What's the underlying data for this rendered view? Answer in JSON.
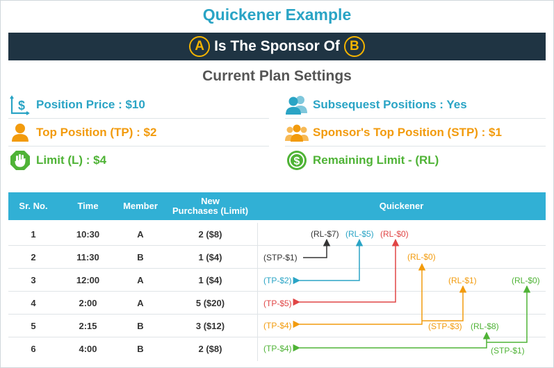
{
  "title": "Quickener Example",
  "banner": {
    "left_circle": "A",
    "text": "Is The Sponsor Of",
    "right_circle": "B"
  },
  "subtitle": "Current Plan Settings",
  "settings": {
    "left": [
      {
        "icon": "price-chart-icon",
        "label": "Position Price : $10",
        "color": "#2aa4c5"
      },
      {
        "icon": "user-icon",
        "label": "Top Position (TP) : $2",
        "color": "#f29b0d"
      },
      {
        "icon": "stop-hand-icon",
        "label": "Limit (L) : $4",
        "color": "#4fb336"
      }
    ],
    "right": [
      {
        "icon": "users-icon",
        "label": "Subsequest Positions : Yes",
        "color": "#2aa4c5"
      },
      {
        "icon": "group-icon",
        "label": "Sponsor's Top Position (STP) : $1",
        "color": "#f29b0d"
      },
      {
        "icon": "dollar-circle-icon",
        "label": "Remaining Limit - (RL)",
        "color": "#4fb336"
      }
    ]
  },
  "table": {
    "headers": {
      "sr": "Sr. No.",
      "time": "Time",
      "member": "Member",
      "purchases_1": "New",
      "purchases_2": "Purchases (Limit)",
      "quickener": "Quickener"
    },
    "rows": [
      {
        "sr": "1",
        "time": "10:30",
        "member": "A",
        "purchases": "2 ($8)"
      },
      {
        "sr": "2",
        "time": "11:30",
        "member": "B",
        "purchases": "1 ($4)"
      },
      {
        "sr": "3",
        "time": "12:00",
        "member": "A",
        "purchases": "1 ($4)"
      },
      {
        "sr": "4",
        "time": "2:00",
        "member": "A",
        "purchases": "5 ($20)"
      },
      {
        "sr": "5",
        "time": "2:15",
        "member": "B",
        "purchases": "3 ($12)"
      },
      {
        "sr": "6",
        "time": "4:00",
        "member": "B",
        "purchases": "2 ($8)"
      }
    ]
  },
  "quickener": {
    "labels": {
      "r1_rl7": "(RL-$7)",
      "r1_rl5": "(RL-$5)",
      "r1_rl0": "(RL-$0)",
      "r2_stp1": "(STP-$1)",
      "r2_rl0": "(RL-$0)",
      "r3_tp2": "(TP-$2)",
      "r3_rl1": "(RL-$1)",
      "r3_rl0": "(RL-$0)",
      "r4_tp5": "(TP-$5)",
      "r5_tp4": "(TP-$4)",
      "r5_stp3": "(STP-$3)",
      "r5_rl8": "(RL-$8)",
      "r6_tp4": "(TP-$4)",
      "r6_stp1": "(STP-$1)"
    },
    "colors": {
      "dark": "#333333",
      "blue": "#2aa4c5",
      "red": "#e04545",
      "orange": "#f29b0d",
      "green": "#4fb336"
    }
  }
}
